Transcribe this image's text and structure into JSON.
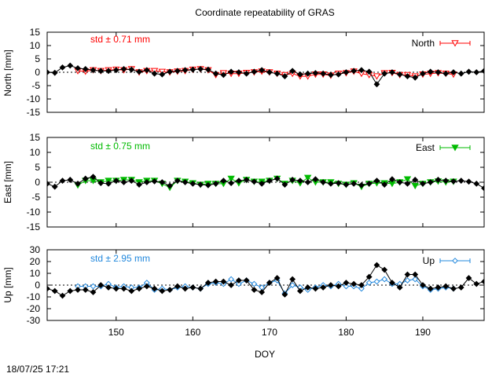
{
  "chart_data": [
    {
      "type": "line",
      "title": "Coordinate repeatability of GRAS",
      "ylabel": "North [mm]",
      "xlabel": "",
      "xlim": [
        141,
        198
      ],
      "ylim": [
        -15,
        15
      ],
      "yticks": [
        15,
        10,
        5,
        0,
        -5,
        -10,
        -15
      ],
      "xticks": [
        150,
        160,
        170,
        180,
        190
      ],
      "annotation": "std ± 0.71 mm",
      "annotation_color": "#ff0000",
      "series": [
        {
          "name": "",
          "color": "#000000",
          "marker": "diamond",
          "x": [
            141,
            142,
            143,
            144,
            145,
            146,
            147,
            148,
            149,
            150,
            151,
            152,
            153,
            154,
            155,
            156,
            157,
            158,
            159,
            160,
            161,
            162,
            163,
            164,
            165,
            166,
            167,
            168,
            169,
            170,
            171,
            172,
            173,
            174,
            175,
            176,
            177,
            178,
            179,
            180,
            181,
            182,
            183,
            184,
            185,
            186,
            187,
            188,
            189,
            190,
            191,
            192,
            193,
            194,
            195,
            196,
            197,
            198
          ],
          "values": [
            0,
            -0.2,
            1.8,
            2.5,
            1.5,
            1.2,
            0.8,
            0.5,
            0.5,
            0.8,
            1.2,
            1.0,
            0.2,
            0.8,
            -0.5,
            -0.8,
            0.2,
            0.5,
            0.8,
            1.0,
            1.2,
            1.0,
            -0.5,
            -1.0,
            0.2,
            0.0,
            -0.5,
            0.2,
            0.8,
            0.0,
            -0.5,
            -1.5,
            0.5,
            -0.8,
            -0.5,
            -0.3,
            -0.5,
            -1.0,
            -0.8,
            0.0,
            0.5,
            0.8,
            0.2,
            -4.5,
            -0.5,
            0.0,
            -0.8,
            -1.5,
            -2.0,
            -0.5,
            0.2,
            0.0,
            -0.5,
            0.0,
            -0.5,
            0.2,
            0.0,
            0.5
          ]
        },
        {
          "name": "North",
          "color": "#ff0000",
          "marker": "triangle-down-open",
          "x": [
            145,
            146,
            147,
            148,
            149,
            150,
            151,
            152,
            153,
            154,
            155,
            156,
            157,
            158,
            159,
            160,
            161,
            162,
            163,
            164,
            165,
            166,
            167,
            168,
            169,
            170,
            171,
            172,
            173,
            174,
            175,
            176,
            177,
            178,
            179,
            180,
            181,
            182,
            183,
            184,
            185,
            186,
            187,
            188,
            189,
            190,
            191,
            192,
            193,
            194
          ],
          "values": [
            0.5,
            0.3,
            0.8,
            0.5,
            0.8,
            1.0,
            0.8,
            1.2,
            0.0,
            0.5,
            0.5,
            0.2,
            0.0,
            0.3,
            0.5,
            1.0,
            1.2,
            0.8,
            -1.0,
            -0.3,
            -0.5,
            -0.5,
            -0.2,
            0.0,
            0.3,
            0.0,
            -0.5,
            -1.0,
            -0.5,
            -1.5,
            -1.5,
            -0.8,
            -0.8,
            -1.2,
            -0.5,
            -0.3,
            0.3,
            -0.5,
            -1.0,
            -1.5,
            -0.3,
            -0.2,
            -1.0,
            -1.0,
            -1.5,
            -0.8,
            -0.5,
            -0.3,
            -0.5,
            -0.8
          ]
        }
      ]
    },
    {
      "type": "line",
      "title": "",
      "ylabel": "East [mm]",
      "xlabel": "",
      "xlim": [
        141,
        198
      ],
      "ylim": [
        -15,
        15
      ],
      "yticks": [
        15,
        10,
        5,
        0,
        -5,
        -10,
        -15
      ],
      "xticks": [
        150,
        160,
        170,
        180,
        190
      ],
      "annotation": "std ± 0.75 mm",
      "annotation_color": "#00bb00",
      "series": [
        {
          "name": "",
          "color": "#000000",
          "marker": "diamond",
          "x": [
            141,
            142,
            143,
            144,
            145,
            146,
            147,
            148,
            149,
            150,
            151,
            152,
            153,
            154,
            155,
            156,
            157,
            158,
            159,
            160,
            161,
            162,
            163,
            164,
            165,
            166,
            167,
            168,
            169,
            170,
            171,
            172,
            173,
            174,
            175,
            176,
            177,
            178,
            179,
            180,
            181,
            182,
            183,
            184,
            185,
            186,
            187,
            188,
            189,
            190,
            191,
            192,
            193,
            194,
            195,
            196,
            197,
            198
          ],
          "values": [
            -0.5,
            -1.5,
            0.5,
            0.8,
            -0.5,
            1.2,
            1.8,
            -0.3,
            -0.5,
            0.5,
            0.0,
            0.5,
            -0.8,
            0.0,
            0.3,
            0.0,
            -1.2,
            0.5,
            0.0,
            -0.5,
            -0.8,
            -1.0,
            -0.5,
            0.5,
            -0.3,
            0.5,
            0.8,
            0.2,
            -0.5,
            0.5,
            1.2,
            -0.8,
            0.8,
            0.5,
            0.0,
            1.0,
            0.0,
            -0.5,
            -0.3,
            -0.8,
            -0.5,
            -1.0,
            -0.5,
            0.5,
            -0.8,
            1.0,
            0.0,
            -0.5,
            0.8,
            -0.5,
            0.0,
            0.8,
            0.5,
            0.3,
            0.5,
            0.2,
            -0.5,
            -2.0
          ]
        },
        {
          "name": "East",
          "color": "#00bb00",
          "marker": "triangle-down-filled",
          "x": [
            145,
            146,
            147,
            148,
            149,
            150,
            151,
            152,
            153,
            154,
            155,
            156,
            157,
            158,
            159,
            160,
            161,
            162,
            163,
            164,
            165,
            166,
            167,
            168,
            169,
            170,
            171,
            172,
            173,
            174,
            175,
            176,
            177,
            178,
            179,
            180,
            181,
            182,
            183,
            184,
            185,
            186,
            187,
            188,
            189,
            190,
            191,
            192,
            193,
            194
          ],
          "values": [
            -1.0,
            0.5,
            0.5,
            0.0,
            0.5,
            0.5,
            0.8,
            0.8,
            0.0,
            0.5,
            0.5,
            -0.5,
            -1.8,
            0.5,
            0.2,
            -0.3,
            -0.8,
            -0.5,
            -0.5,
            -0.5,
            1.2,
            -0.3,
            0.8,
            0.2,
            0.2,
            0.5,
            1.2,
            -0.5,
            0.5,
            -0.3,
            1.5,
            0.0,
            0.0,
            0.0,
            -0.5,
            -0.8,
            -0.3,
            -1.5,
            -0.5,
            -0.3,
            -0.3,
            -0.5,
            0.0,
            1.0,
            -1.2,
            -0.5,
            0.0,
            0.3,
            0.0,
            0.2
          ]
        }
      ]
    },
    {
      "type": "line",
      "title": "",
      "ylabel": "Up [mm]",
      "xlabel": "DOY",
      "xlim": [
        141,
        198
      ],
      "ylim": [
        -30,
        30
      ],
      "yticks": [
        30,
        20,
        10,
        0,
        -10,
        -20,
        -30
      ],
      "xticks": [
        150,
        160,
        170,
        180,
        190
      ],
      "annotation": "std ± 2.95 mm",
      "annotation_color": "#2288dd",
      "series": [
        {
          "name": "",
          "color": "#000000",
          "marker": "diamond",
          "x": [
            141,
            142,
            143,
            144,
            145,
            146,
            147,
            148,
            149,
            150,
            151,
            152,
            153,
            154,
            155,
            156,
            157,
            158,
            159,
            160,
            161,
            162,
            163,
            164,
            165,
            166,
            167,
            168,
            169,
            170,
            171,
            172,
            173,
            174,
            175,
            176,
            177,
            178,
            179,
            180,
            181,
            182,
            183,
            184,
            185,
            186,
            187,
            188,
            189,
            190,
            191,
            192,
            193,
            194,
            195,
            196,
            197,
            198
          ],
          "values": [
            -3,
            -5,
            -9,
            -5,
            -4,
            -4,
            -6,
            0,
            -2,
            -3,
            -3,
            -5,
            -3,
            -1,
            -3,
            -5,
            -4,
            -1,
            -3,
            -2,
            -3,
            2,
            3,
            3,
            0,
            4,
            4,
            -4,
            -6,
            2,
            6,
            -8,
            5,
            -5,
            -2,
            -3,
            -2,
            0,
            -1,
            2,
            1,
            0,
            7,
            17,
            13,
            2,
            -2,
            9,
            9,
            0,
            -3,
            -2,
            -1,
            -3,
            -2,
            6,
            1,
            3
          ]
        },
        {
          "name": "Up",
          "color": "#2288dd",
          "marker": "diamond-open",
          "x": [
            145,
            146,
            147,
            148,
            149,
            150,
            151,
            152,
            153,
            154,
            155,
            156,
            157,
            158,
            159,
            160,
            161,
            162,
            163,
            164,
            165,
            166,
            167,
            168,
            169,
            170,
            171,
            172,
            173,
            174,
            175,
            176,
            177,
            178,
            179,
            180,
            181,
            182,
            183,
            184,
            185,
            186,
            187,
            188,
            189,
            190,
            191,
            192,
            193,
            194
          ],
          "values": [
            -1,
            -1,
            -1,
            -1,
            1,
            -2,
            -1,
            -2,
            -2,
            2,
            -4,
            -3,
            -4,
            -2,
            -1,
            -2,
            -3,
            1,
            2,
            1,
            5,
            1,
            4,
            1,
            -2,
            2,
            4,
            -7,
            0,
            -2,
            -4,
            -2,
            0,
            -1,
            1,
            -1,
            -1,
            -3,
            2,
            3,
            5,
            1,
            1,
            4,
            5,
            -1,
            -4,
            -3,
            -2,
            -3
          ]
        }
      ]
    }
  ],
  "footer": {
    "timestamp": "18/07/25 17:21"
  }
}
